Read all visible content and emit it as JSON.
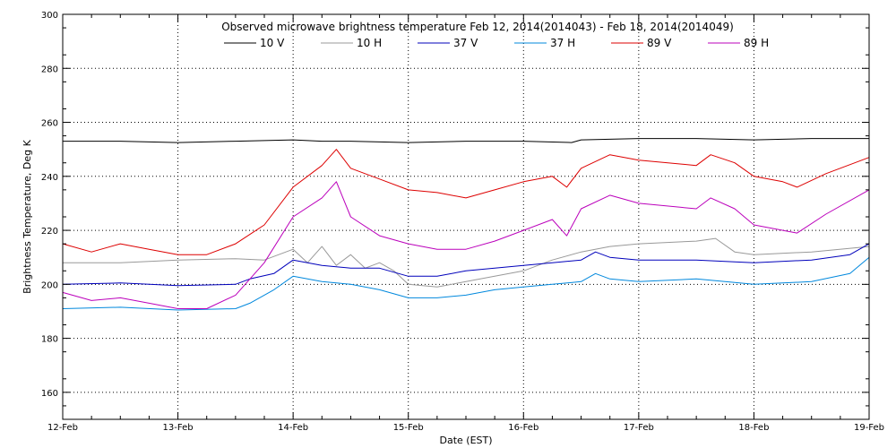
{
  "chart_data": {
    "type": "line",
    "title": "Observed microwave brightness temperature Feb 12, 2014(2014043) - Feb 18, 2014(2014049)",
    "xlabel": "Date (EST)",
    "ylabel": "Brightness Temperature, Deg K",
    "xlim": [
      "2014-02-12",
      "2014-02-19"
    ],
    "ylim": [
      150,
      300
    ],
    "x_ticks": [
      "12-Feb",
      "13-Feb",
      "14-Feb",
      "15-Feb",
      "16-Feb",
      "17-Feb",
      "18-Feb",
      "19-Feb"
    ],
    "y_ticks": [
      160,
      180,
      200,
      220,
      240,
      260,
      280,
      300
    ],
    "grid": true,
    "legend_position": "top-center",
    "series": [
      {
        "name": "10 V",
        "color": "#000000",
        "points": [
          [
            "2014-02-12T00:00",
            253
          ],
          [
            "2014-02-12T12:00",
            253
          ],
          [
            "2014-02-13T00:00",
            252.5
          ],
          [
            "2014-02-13T12:00",
            253
          ],
          [
            "2014-02-14T00:00",
            253.5
          ],
          [
            "2014-02-14T06:00",
            253
          ],
          [
            "2014-02-14T12:00",
            253
          ],
          [
            "2014-02-15T00:00",
            252.5
          ],
          [
            "2014-02-15T12:00",
            253
          ],
          [
            "2014-02-16T00:00",
            253
          ],
          [
            "2014-02-16T10:00",
            252.5
          ],
          [
            "2014-02-16T12:00",
            253.5
          ],
          [
            "2014-02-17T00:00",
            254
          ],
          [
            "2014-02-17T12:00",
            254
          ],
          [
            "2014-02-18T00:00",
            253.5
          ],
          [
            "2014-02-18T12:00",
            254
          ],
          [
            "2014-02-19T00:00",
            254
          ]
        ]
      },
      {
        "name": "10 H",
        "color": "#999999",
        "points": [
          [
            "2014-02-12T00:00",
            208
          ],
          [
            "2014-02-12T12:00",
            208
          ],
          [
            "2014-02-13T00:00",
            209
          ],
          [
            "2014-02-13T12:00",
            209.5
          ],
          [
            "2014-02-13T18:00",
            209
          ],
          [
            "2014-02-14T00:00",
            213
          ],
          [
            "2014-02-14T03:00",
            208
          ],
          [
            "2014-02-14T06:00",
            214
          ],
          [
            "2014-02-14T09:00",
            207
          ],
          [
            "2014-02-14T12:00",
            211
          ],
          [
            "2014-02-14T15:00",
            206
          ],
          [
            "2014-02-14T18:00",
            208
          ],
          [
            "2014-02-14T21:00",
            205
          ],
          [
            "2014-02-15T00:00",
            200
          ],
          [
            "2014-02-15T06:00",
            199
          ],
          [
            "2014-02-15T12:00",
            201
          ],
          [
            "2014-02-15T18:00",
            203
          ],
          [
            "2014-02-16T00:00",
            205
          ],
          [
            "2014-02-16T06:00",
            209
          ],
          [
            "2014-02-16T12:00",
            212
          ],
          [
            "2014-02-16T18:00",
            214
          ],
          [
            "2014-02-17T00:00",
            215
          ],
          [
            "2014-02-17T12:00",
            216
          ],
          [
            "2014-02-17T16:00",
            217
          ],
          [
            "2014-02-17T20:00",
            212
          ],
          [
            "2014-02-18T00:00",
            211
          ],
          [
            "2014-02-18T12:00",
            212
          ],
          [
            "2014-02-19T00:00",
            214
          ]
        ]
      },
      {
        "name": "37 V",
        "color": "#0000bb",
        "points": [
          [
            "2014-02-12T00:00",
            200
          ],
          [
            "2014-02-12T12:00",
            200.5
          ],
          [
            "2014-02-13T00:00",
            199.5
          ],
          [
            "2014-02-13T12:00",
            200
          ],
          [
            "2014-02-13T15:00",
            202
          ],
          [
            "2014-02-13T20:00",
            204
          ],
          [
            "2014-02-14T00:00",
            209
          ],
          [
            "2014-02-14T06:00",
            207
          ],
          [
            "2014-02-14T12:00",
            206
          ],
          [
            "2014-02-14T18:00",
            206
          ],
          [
            "2014-02-15T00:00",
            203
          ],
          [
            "2014-02-15T06:00",
            203
          ],
          [
            "2014-02-15T12:00",
            205
          ],
          [
            "2014-02-15T18:00",
            206
          ],
          [
            "2014-02-16T00:00",
            207
          ],
          [
            "2014-02-16T06:00",
            208
          ],
          [
            "2014-02-16T12:00",
            209
          ],
          [
            "2014-02-16T15:00",
            212
          ],
          [
            "2014-02-16T18:00",
            210
          ],
          [
            "2014-02-17T00:00",
            209
          ],
          [
            "2014-02-17T12:00",
            209
          ],
          [
            "2014-02-18T00:00",
            208
          ],
          [
            "2014-02-18T12:00",
            209
          ],
          [
            "2014-02-18T20:00",
            211
          ],
          [
            "2014-02-19T00:00",
            215
          ]
        ]
      },
      {
        "name": "37 H",
        "color": "#0088dd",
        "points": [
          [
            "2014-02-12T00:00",
            191
          ],
          [
            "2014-02-12T12:00",
            191.5
          ],
          [
            "2014-02-13T00:00",
            190.5
          ],
          [
            "2014-02-13T12:00",
            191
          ],
          [
            "2014-02-13T15:00",
            193
          ],
          [
            "2014-02-13T20:00",
            198
          ],
          [
            "2014-02-14T00:00",
            203
          ],
          [
            "2014-02-14T06:00",
            201
          ],
          [
            "2014-02-14T12:00",
            200
          ],
          [
            "2014-02-14T18:00",
            198
          ],
          [
            "2014-02-15T00:00",
            195
          ],
          [
            "2014-02-15T06:00",
            195
          ],
          [
            "2014-02-15T12:00",
            196
          ],
          [
            "2014-02-15T18:00",
            198
          ],
          [
            "2014-02-16T00:00",
            199
          ],
          [
            "2014-02-16T06:00",
            200
          ],
          [
            "2014-02-16T12:00",
            201
          ],
          [
            "2014-02-16T15:00",
            204
          ],
          [
            "2014-02-16T18:00",
            202
          ],
          [
            "2014-02-17T00:00",
            201
          ],
          [
            "2014-02-17T12:00",
            202
          ],
          [
            "2014-02-18T00:00",
            200
          ],
          [
            "2014-02-18T12:00",
            201
          ],
          [
            "2014-02-18T20:00",
            204
          ],
          [
            "2014-02-19T00:00",
            210
          ]
        ]
      },
      {
        "name": "89 V",
        "color": "#dd0000",
        "points": [
          [
            "2014-02-12T00:00",
            215
          ],
          [
            "2014-02-12T06:00",
            212
          ],
          [
            "2014-02-12T12:00",
            215
          ],
          [
            "2014-02-12T18:00",
            213
          ],
          [
            "2014-02-13T00:00",
            211
          ],
          [
            "2014-02-13T06:00",
            211
          ],
          [
            "2014-02-13T12:00",
            215
          ],
          [
            "2014-02-13T18:00",
            222
          ],
          [
            "2014-02-14T00:00",
            236
          ],
          [
            "2014-02-14T06:00",
            244
          ],
          [
            "2014-02-14T09:00",
            250
          ],
          [
            "2014-02-14T12:00",
            243
          ],
          [
            "2014-02-14T18:00",
            239
          ],
          [
            "2014-02-15T00:00",
            235
          ],
          [
            "2014-02-15T06:00",
            234
          ],
          [
            "2014-02-15T12:00",
            232
          ],
          [
            "2014-02-15T18:00",
            235
          ],
          [
            "2014-02-16T00:00",
            238
          ],
          [
            "2014-02-16T06:00",
            240
          ],
          [
            "2014-02-16T09:00",
            236
          ],
          [
            "2014-02-16T12:00",
            243
          ],
          [
            "2014-02-16T18:00",
            248
          ],
          [
            "2014-02-17T00:00",
            246
          ],
          [
            "2014-02-17T12:00",
            244
          ],
          [
            "2014-02-17T15:00",
            248
          ],
          [
            "2014-02-17T20:00",
            245
          ],
          [
            "2014-02-18T00:00",
            240
          ],
          [
            "2014-02-18T06:00",
            238
          ],
          [
            "2014-02-18T09:00",
            236
          ],
          [
            "2014-02-18T15:00",
            241
          ],
          [
            "2014-02-19T00:00",
            247
          ]
        ]
      },
      {
        "name": "89 H",
        "color": "#bb00bb",
        "points": [
          [
            "2014-02-12T00:00",
            197
          ],
          [
            "2014-02-12T06:00",
            194
          ],
          [
            "2014-02-12T12:00",
            195
          ],
          [
            "2014-02-12T18:00",
            193
          ],
          [
            "2014-02-13T00:00",
            191
          ],
          [
            "2014-02-13T06:00",
            191
          ],
          [
            "2014-02-13T12:00",
            196
          ],
          [
            "2014-02-13T18:00",
            208
          ],
          [
            "2014-02-14T00:00",
            225
          ],
          [
            "2014-02-14T06:00",
            232
          ],
          [
            "2014-02-14T09:00",
            238
          ],
          [
            "2014-02-14T12:00",
            225
          ],
          [
            "2014-02-14T18:00",
            218
          ],
          [
            "2014-02-15T00:00",
            215
          ],
          [
            "2014-02-15T06:00",
            213
          ],
          [
            "2014-02-15T12:00",
            213
          ],
          [
            "2014-02-15T18:00",
            216
          ],
          [
            "2014-02-16T00:00",
            220
          ],
          [
            "2014-02-16T06:00",
            224
          ],
          [
            "2014-02-16T09:00",
            218
          ],
          [
            "2014-02-16T12:00",
            228
          ],
          [
            "2014-02-16T18:00",
            233
          ],
          [
            "2014-02-17T00:00",
            230
          ],
          [
            "2014-02-17T12:00",
            228
          ],
          [
            "2014-02-17T15:00",
            232
          ],
          [
            "2014-02-17T20:00",
            228
          ],
          [
            "2014-02-18T00:00",
            222
          ],
          [
            "2014-02-18T09:00",
            219
          ],
          [
            "2014-02-18T15:00",
            226
          ],
          [
            "2014-02-19T00:00",
            235
          ]
        ]
      }
    ]
  }
}
